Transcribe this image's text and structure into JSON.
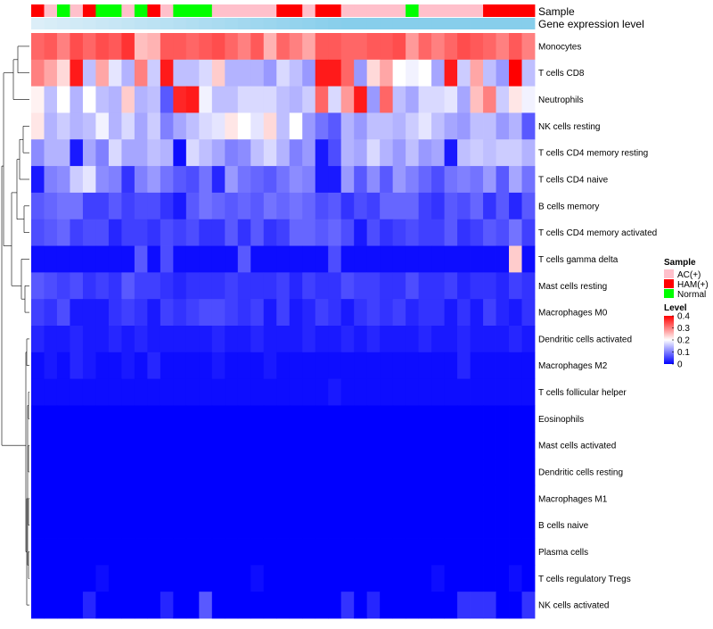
{
  "colors": {
    "low": "#0000ff",
    "mid": "#ffffff",
    "high": "#ff0000",
    "AC(+)": "#ffc0cb",
    "HAM(+)": "#ff0000",
    "Normal": "#00ff00",
    "expression_bar": "#87ceeb"
  },
  "chart_data": {
    "type": "heatmap",
    "annotation_titles": {
      "sample": "Sample",
      "expression": "Gene expression level"
    },
    "legend": {
      "sample_title": "Sample",
      "sample_entries": [
        "AC(+)",
        "HAM(+)",
        "Normal"
      ],
      "level_title": "Level",
      "level_ticks": [
        "0.4",
        "0.3",
        "0.2",
        "0.1",
        "0"
      ],
      "level_tick_values": [
        0.4,
        0.3,
        0.2,
        0.1,
        0
      ],
      "level_range": [
        0,
        0.4
      ]
    },
    "sample_groups": [
      "HAM(+)",
      "AC(+)",
      "Normal",
      "AC(+)",
      "HAM(+)",
      "Normal",
      "Normal",
      "AC(+)",
      "Normal",
      "HAM(+)",
      "AC(+)",
      "Normal",
      "Normal",
      "Normal",
      "AC(+)",
      "AC(+)",
      "AC(+)",
      "AC(+)",
      "AC(+)",
      "HAM(+)",
      "HAM(+)",
      "AC(+)",
      "HAM(+)",
      "HAM(+)",
      "AC(+)",
      "AC(+)",
      "AC(+)",
      "AC(+)",
      "AC(+)",
      "Normal",
      "AC(+)",
      "AC(+)",
      "AC(+)",
      "AC(+)",
      "AC(+)",
      "HAM(+)",
      "HAM(+)",
      "HAM(+)",
      "HAM(+)"
    ],
    "rows": [
      "Monocytes",
      "T cells CD8",
      "Neutrophils",
      "NK cells resting",
      "T cells CD4 memory resting",
      "T cells CD4 naive",
      "B cells memory",
      "T cells CD4 memory activated",
      "T cells gamma delta",
      "Mast cells resting",
      "Macrophages M0",
      "Dendritic cells activated",
      "Macrophages M2",
      "T cells follicular helper",
      "Eosinophils",
      "Mast cells activated",
      "Dendritic cells resting",
      "Macrophages M1",
      "B cells naive",
      "Plasma cells",
      "T cells regulatory  Tregs",
      "NK cells activated"
    ],
    "values": [
      [
        0.32,
        0.33,
        0.3,
        0.34,
        0.32,
        0.34,
        0.33,
        0.36,
        0.25,
        0.26,
        0.33,
        0.33,
        0.32,
        0.33,
        0.34,
        0.32,
        0.3,
        0.33,
        0.26,
        0.32,
        0.3,
        0.27,
        0.33,
        0.33,
        0.32,
        0.32,
        0.33,
        0.33,
        0.34,
        0.28,
        0.32,
        0.3,
        0.32,
        0.34,
        0.33,
        0.32,
        0.3,
        0.33,
        0.3
      ],
      [
        0.3,
        0.27,
        0.23,
        0.38,
        0.15,
        0.27,
        0.18,
        0.14,
        0.3,
        0.16,
        0.38,
        0.15,
        0.15,
        0.17,
        0.24,
        0.14,
        0.14,
        0.14,
        0.12,
        0.17,
        0.15,
        0.12,
        0.38,
        0.38,
        0.32,
        0.12,
        0.23,
        0.27,
        0.2,
        0.19,
        0.2,
        0.13,
        0.38,
        0.16,
        0.27,
        0.15,
        0.12,
        0.4,
        0.15
      ],
      [
        0.21,
        0.15,
        0.2,
        0.14,
        0.2,
        0.15,
        0.14,
        0.24,
        0.14,
        0.15,
        0.07,
        0.37,
        0.38,
        0.19,
        0.15,
        0.15,
        0.17,
        0.17,
        0.17,
        0.15,
        0.14,
        0.16,
        0.32,
        0.17,
        0.28,
        0.38,
        0.12,
        0.32,
        0.15,
        0.13,
        0.17,
        0.17,
        0.18,
        0.13,
        0.25,
        0.3,
        0.16,
        0.22,
        0.19
      ],
      [
        0.22,
        0.14,
        0.16,
        0.14,
        0.15,
        0.19,
        0.14,
        0.17,
        0.13,
        0.16,
        0.1,
        0.13,
        0.15,
        0.17,
        0.18,
        0.22,
        0.2,
        0.18,
        0.23,
        0.15,
        0.2,
        0.12,
        0.09,
        0.07,
        0.14,
        0.12,
        0.15,
        0.15,
        0.14,
        0.16,
        0.18,
        0.15,
        0.13,
        0.12,
        0.15,
        0.15,
        0.12,
        0.14,
        0.07
      ],
      [
        0.11,
        0.14,
        0.14,
        0.02,
        0.13,
        0.1,
        0.17,
        0.13,
        0.13,
        0.15,
        0.14,
        0.01,
        0.17,
        0.15,
        0.13,
        0.1,
        0.11,
        0.15,
        0.17,
        0.14,
        0.1,
        0.12,
        0.02,
        0.06,
        0.14,
        0.13,
        0.17,
        0.14,
        0.12,
        0.15,
        0.12,
        0.13,
        0.02,
        0.15,
        0.16,
        0.15,
        0.16,
        0.16,
        0.14
      ],
      [
        0.02,
        0.1,
        0.11,
        0.16,
        0.18,
        0.11,
        0.1,
        0.04,
        0.1,
        0.12,
        0.09,
        0.07,
        0.06,
        0.09,
        0.03,
        0.12,
        0.09,
        0.08,
        0.07,
        0.09,
        0.11,
        0.1,
        0.02,
        0.02,
        0.12,
        0.07,
        0.11,
        0.07,
        0.12,
        0.1,
        0.08,
        0.06,
        0.09,
        0.1,
        0.09,
        0.12,
        0.07,
        0.13,
        0.09
      ],
      [
        0.07,
        0.08,
        0.09,
        0.09,
        0.05,
        0.05,
        0.07,
        0.05,
        0.06,
        0.06,
        0.04,
        0.02,
        0.07,
        0.09,
        0.08,
        0.07,
        0.08,
        0.07,
        0.09,
        0.08,
        0.09,
        0.08,
        0.06,
        0.07,
        0.04,
        0.06,
        0.05,
        0.08,
        0.08,
        0.08,
        0.05,
        0.04,
        0.07,
        0.06,
        0.08,
        0.04,
        0.07,
        0.03,
        0.07
      ],
      [
        0.06,
        0.07,
        0.08,
        0.05,
        0.06,
        0.06,
        0.03,
        0.05,
        0.05,
        0.04,
        0.06,
        0.05,
        0.06,
        0.04,
        0.04,
        0.07,
        0.04,
        0.07,
        0.04,
        0.05,
        0.08,
        0.08,
        0.07,
        0.08,
        0.06,
        0.02,
        0.06,
        0.04,
        0.05,
        0.06,
        0.05,
        0.05,
        0.07,
        0.04,
        0.05,
        0.07,
        0.06,
        0.09,
        0.05
      ],
      [
        0.01,
        0.01,
        0.01,
        0.01,
        0.01,
        0.01,
        0.01,
        0.01,
        0.07,
        0.01,
        0.06,
        0.01,
        0.01,
        0.01,
        0.01,
        0.01,
        0.07,
        0.01,
        0.01,
        0.01,
        0.01,
        0.01,
        0.01,
        0.06,
        0.01,
        0.01,
        0.01,
        0.01,
        0.01,
        0.01,
        0.01,
        0.01,
        0.01,
        0.01,
        0.01,
        0.01,
        0.01,
        0.24,
        0.01
      ],
      [
        0.07,
        0.06,
        0.05,
        0.06,
        0.04,
        0.05,
        0.04,
        0.07,
        0.05,
        0.05,
        0.04,
        0.03,
        0.04,
        0.04,
        0.04,
        0.05,
        0.04,
        0.04,
        0.04,
        0.05,
        0.03,
        0.05,
        0.04,
        0.04,
        0.06,
        0.05,
        0.05,
        0.04,
        0.04,
        0.06,
        0.04,
        0.04,
        0.05,
        0.03,
        0.04,
        0.04,
        0.03,
        0.05,
        0.04
      ],
      [
        0.05,
        0.04,
        0.06,
        0.02,
        0.02,
        0.02,
        0.04,
        0.05,
        0.04,
        0.02,
        0.05,
        0.04,
        0.05,
        0.06,
        0.06,
        0.05,
        0.04,
        0.05,
        0.02,
        0.05,
        0.02,
        0.03,
        0.05,
        0.04,
        0.02,
        0.04,
        0.05,
        0.04,
        0.05,
        0.03,
        0.04,
        0.04,
        0.02,
        0.04,
        0.02,
        0.05,
        0.03,
        0.02,
        0.04
      ],
      [
        0.03,
        0.02,
        0.02,
        0.03,
        0.02,
        0.02,
        0.03,
        0.02,
        0.03,
        0.02,
        0.02,
        0.02,
        0.02,
        0.02,
        0.03,
        0.02,
        0.02,
        0.03,
        0.02,
        0.02,
        0.02,
        0.03,
        0.02,
        0.02,
        0.03,
        0.02,
        0.03,
        0.02,
        0.02,
        0.02,
        0.03,
        0.02,
        0.02,
        0.03,
        0.02,
        0.02,
        0.02,
        0.03,
        0.02
      ],
      [
        0.01,
        0.02,
        0.01,
        0.03,
        0.02,
        0.01,
        0.01,
        0.02,
        0.01,
        0.03,
        0.01,
        0.01,
        0.01,
        0.01,
        0.02,
        0.01,
        0.01,
        0.01,
        0.02,
        0.01,
        0.01,
        0.01,
        0.01,
        0.01,
        0.01,
        0.01,
        0.01,
        0.01,
        0.01,
        0.01,
        0.01,
        0.01,
        0.01,
        0.03,
        0.01,
        0.01,
        0.01,
        0.01,
        0.01
      ],
      [
        0.01,
        0.01,
        0.01,
        0.01,
        0.01,
        0.01,
        0.01,
        0.01,
        0.01,
        0.01,
        0.01,
        0.01,
        0.01,
        0.01,
        0.01,
        0.01,
        0.01,
        0.01,
        0.01,
        0.01,
        0.01,
        0.01,
        0.01,
        0.02,
        0.01,
        0.01,
        0.01,
        0.01,
        0.01,
        0.01,
        0.01,
        0.01,
        0.01,
        0.01,
        0.01,
        0.01,
        0.01,
        0.01,
        0.01
      ],
      [
        0.0,
        0.0,
        0.0,
        0.0,
        0.0,
        0.0,
        0.0,
        0.0,
        0.0,
        0.0,
        0.0,
        0.0,
        0.0,
        0.0,
        0.0,
        0.0,
        0.0,
        0.0,
        0.0,
        0.0,
        0.0,
        0.0,
        0.0,
        0.0,
        0.0,
        0.0,
        0.0,
        0.0,
        0.0,
        0.0,
        0.0,
        0.0,
        0.0,
        0.0,
        0.0,
        0.0,
        0.0,
        0.0,
        0.0
      ],
      [
        0.0,
        0.0,
        0.0,
        0.0,
        0.0,
        0.0,
        0.0,
        0.0,
        0.0,
        0.0,
        0.0,
        0.0,
        0.0,
        0.0,
        0.0,
        0.0,
        0.0,
        0.0,
        0.0,
        0.0,
        0.0,
        0.0,
        0.0,
        0.0,
        0.0,
        0.0,
        0.0,
        0.0,
        0.0,
        0.0,
        0.0,
        0.0,
        0.0,
        0.0,
        0.0,
        0.0,
        0.0,
        0.0,
        0.0
      ],
      [
        0.0,
        0.0,
        0.0,
        0.0,
        0.0,
        0.0,
        0.0,
        0.0,
        0.0,
        0.0,
        0.0,
        0.0,
        0.0,
        0.0,
        0.0,
        0.0,
        0.0,
        0.0,
        0.0,
        0.0,
        0.0,
        0.0,
        0.0,
        0.0,
        0.0,
        0.0,
        0.0,
        0.0,
        0.0,
        0.0,
        0.0,
        0.0,
        0.0,
        0.0,
        0.0,
        0.0,
        0.0,
        0.0,
        0.0
      ],
      [
        0.0,
        0.0,
        0.0,
        0.0,
        0.0,
        0.0,
        0.0,
        0.0,
        0.0,
        0.0,
        0.0,
        0.0,
        0.0,
        0.0,
        0.0,
        0.0,
        0.0,
        0.0,
        0.0,
        0.0,
        0.0,
        0.0,
        0.0,
        0.0,
        0.0,
        0.0,
        0.0,
        0.0,
        0.0,
        0.0,
        0.0,
        0.0,
        0.0,
        0.0,
        0.0,
        0.0,
        0.0,
        0.0,
        0.0
      ],
      [
        0.0,
        0.0,
        0.0,
        0.0,
        0.0,
        0.0,
        0.0,
        0.0,
        0.0,
        0.0,
        0.0,
        0.0,
        0.0,
        0.0,
        0.0,
        0.0,
        0.0,
        0.0,
        0.0,
        0.0,
        0.0,
        0.0,
        0.0,
        0.0,
        0.0,
        0.0,
        0.0,
        0.0,
        0.0,
        0.0,
        0.0,
        0.0,
        0.0,
        0.0,
        0.0,
        0.0,
        0.0,
        0.0,
        0.0
      ],
      [
        0.0,
        0.0,
        0.0,
        0.0,
        0.0,
        0.0,
        0.0,
        0.0,
        0.0,
        0.0,
        0.0,
        0.0,
        0.0,
        0.0,
        0.0,
        0.0,
        0.0,
        0.0,
        0.0,
        0.0,
        0.0,
        0.0,
        0.0,
        0.0,
        0.0,
        0.0,
        0.0,
        0.0,
        0.0,
        0.0,
        0.0,
        0.0,
        0.0,
        0.0,
        0.0,
        0.0,
        0.0,
        0.0,
        0.0
      ],
      [
        0.0,
        0.0,
        0.0,
        0.0,
        0.0,
        0.01,
        0.0,
        0.0,
        0.0,
        0.0,
        0.0,
        0.0,
        0.0,
        0.0,
        0.0,
        0.0,
        0.0,
        0.01,
        0.0,
        0.0,
        0.0,
        0.0,
        0.0,
        0.0,
        0.0,
        0.0,
        0.0,
        0.0,
        0.0,
        0.0,
        0.0,
        0.01,
        0.0,
        0.0,
        0.0,
        0.0,
        0.0,
        0.01,
        0.0
      ],
      [
        0.0,
        0.0,
        0.0,
        0.0,
        0.03,
        0.0,
        0.0,
        0.0,
        0.0,
        0.0,
        0.03,
        0.0,
        0.0,
        0.07,
        0.0,
        0.0,
        0.0,
        0.0,
        0.0,
        0.0,
        0.0,
        0.0,
        0.0,
        0.0,
        0.04,
        0.0,
        0.03,
        0.0,
        0.0,
        0.0,
        0.0,
        0.0,
        0.0,
        0.04,
        0.04,
        0.04,
        0.0,
        0.0,
        0.04
      ]
    ]
  }
}
